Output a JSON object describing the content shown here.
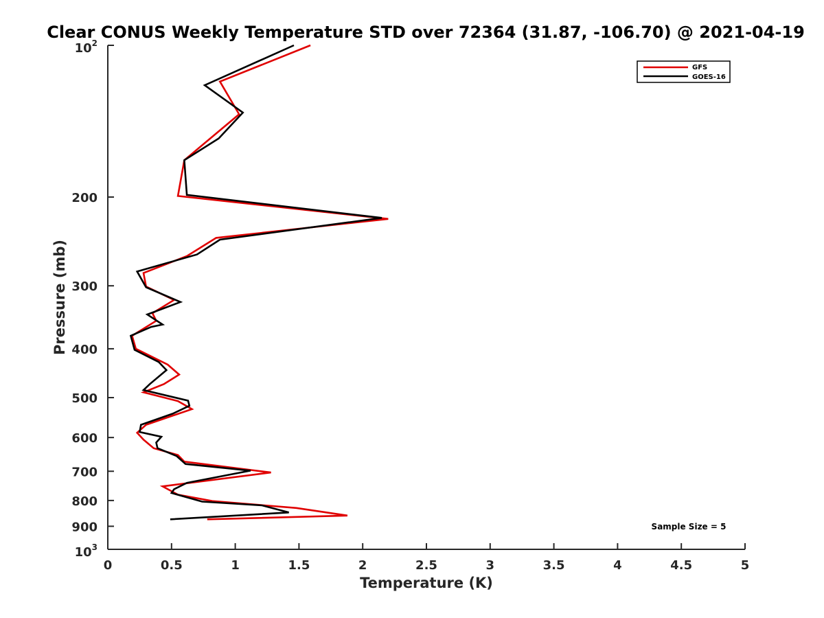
{
  "chart_data": {
    "type": "line",
    "title": "Clear CONUS Weekly Temperature STD over 72364 (31.87, -106.70) @ 2021-04-19",
    "xlabel": "Temperature (K)",
    "ylabel": "Pressure (mb)",
    "xlim": [
      0,
      5
    ],
    "ylim": [
      100,
      1000
    ],
    "y_scale": "log",
    "y_reversed": true,
    "x_ticks": [
      0,
      0.5,
      1,
      1.5,
      2,
      2.5,
      3,
      3.5,
      4,
      4.5,
      5
    ],
    "x_tick_labels": [
      "0",
      "0.5",
      "1",
      "1.5",
      "2",
      "2.5",
      "3",
      "3.5",
      "4",
      "4.5",
      "5"
    ],
    "y_ticks": [
      200,
      300,
      400,
      500,
      600,
      700,
      800,
      900
    ],
    "y_tick_labels": [
      "200",
      "300",
      "400",
      "500",
      "600",
      "700",
      "800",
      "900"
    ],
    "y_end_labels": {
      "top_base": "10",
      "top_exp": "2",
      "bottom_base": "10",
      "bottom_exp": "3"
    },
    "grid": false,
    "legend_position": "top-right",
    "annotation": "Sample Size = 5",
    "series": [
      {
        "name": "GFS",
        "color": "#e00000",
        "points": [
          [
            1.59,
            100
          ],
          [
            0.88,
            118
          ],
          [
            1.03,
            137
          ],
          [
            0.6,
            169
          ],
          [
            0.55,
            199
          ],
          [
            2.2,
            221
          ],
          [
            0.85,
            241
          ],
          [
            0.62,
            262
          ],
          [
            0.28,
            283
          ],
          [
            0.3,
            301
          ],
          [
            0.52,
            320
          ],
          [
            0.35,
            340
          ],
          [
            0.38,
            352
          ],
          [
            0.19,
            377
          ],
          [
            0.22,
            400
          ],
          [
            0.47,
            430
          ],
          [
            0.56,
            450
          ],
          [
            0.44,
            470
          ],
          [
            0.28,
            488
          ],
          [
            0.55,
            508
          ],
          [
            0.66,
            527
          ],
          [
            0.3,
            566
          ],
          [
            0.23,
            587
          ],
          [
            0.28,
            606
          ],
          [
            0.36,
            630
          ],
          [
            0.55,
            650
          ],
          [
            0.6,
            670
          ],
          [
            1.28,
            704
          ],
          [
            0.43,
            750
          ],
          [
            0.55,
            779
          ],
          [
            0.82,
            802
          ],
          [
            1.48,
            828
          ],
          [
            1.88,
            857
          ],
          [
            0.78,
            872
          ]
        ]
      },
      {
        "name": "GOES-16",
        "color": "#000000",
        "points": [
          [
            1.46,
            100
          ],
          [
            0.76,
            120
          ],
          [
            1.06,
            136
          ],
          [
            0.87,
            153
          ],
          [
            0.6,
            169
          ],
          [
            0.62,
            198
          ],
          [
            2.15,
            220
          ],
          [
            0.88,
            243
          ],
          [
            0.7,
            260
          ],
          [
            0.23,
            281
          ],
          [
            0.3,
            302
          ],
          [
            0.57,
            323
          ],
          [
            0.31,
            342
          ],
          [
            0.43,
            358
          ],
          [
            0.34,
            362
          ],
          [
            0.18,
            377
          ],
          [
            0.21,
            402
          ],
          [
            0.4,
            425
          ],
          [
            0.46,
            441
          ],
          [
            0.33,
            470
          ],
          [
            0.28,
            483
          ],
          [
            0.63,
            507
          ],
          [
            0.64,
            519
          ],
          [
            0.51,
            538
          ],
          [
            0.26,
            566
          ],
          [
            0.25,
            585
          ],
          [
            0.42,
            598
          ],
          [
            0.38,
            614
          ],
          [
            0.39,
            630
          ],
          [
            0.54,
            653
          ],
          [
            0.61,
            677
          ],
          [
            1.12,
            698
          ],
          [
            0.62,
            738
          ],
          [
            0.52,
            760
          ],
          [
            0.5,
            773
          ],
          [
            0.74,
            804
          ],
          [
            1.21,
            818
          ],
          [
            1.42,
            845
          ],
          [
            0.49,
            872
          ]
        ]
      }
    ]
  }
}
